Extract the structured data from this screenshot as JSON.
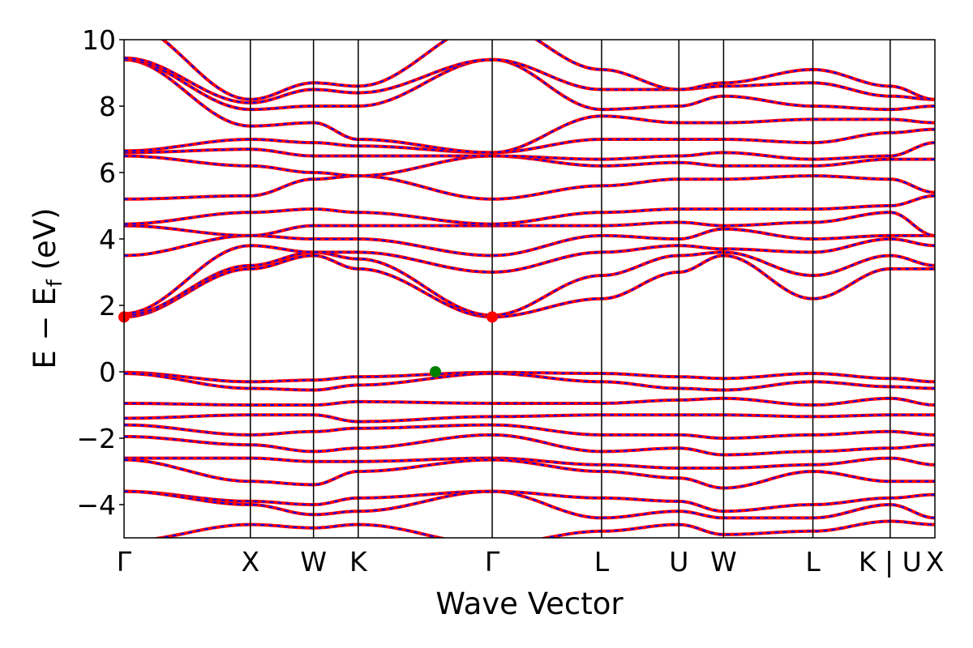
{
  "chart_data": {
    "type": "line",
    "title": "",
    "xlabel": "Wave Vector",
    "ylabel": "E − E",
    "ylabel_sub": "f",
    "ylabel_unit": " (eV)",
    "ylim": [
      -5,
      10
    ],
    "yticks": [
      -4,
      -2,
      0,
      2,
      4,
      6,
      8,
      10
    ],
    "ytick_labels": [
      "−4",
      "−2",
      "0",
      "2",
      "4",
      "6",
      "8",
      "10"
    ],
    "grid": false,
    "line_colors": {
      "band": "#ff0000",
      "overlay_dash": "#0000ff"
    },
    "kpoints": {
      "labels": [
        "Γ",
        "X",
        "W",
        "K",
        "Γ",
        "L",
        "U",
        "W",
        "L",
        "K | U",
        "X"
      ],
      "distance": [
        0,
        1.0,
        1.5,
        1.854,
        2.915,
        3.781,
        4.393,
        4.747,
        5.454,
        6.066,
        6.42
      ]
    },
    "bands": [
      [
        -0.02,
        -0.3,
        -0.25,
        -0.15,
        -0.02,
        -0.05,
        -0.15,
        -0.2,
        -0.05,
        -0.2,
        -0.3
      ],
      [
        -0.05,
        -0.5,
        -0.55,
        -0.4,
        -0.05,
        -0.3,
        -0.5,
        -0.55,
        -0.3,
        -0.45,
        -0.5
      ],
      [
        -0.95,
        -1.0,
        -1.0,
        -0.9,
        -0.95,
        -0.95,
        -0.85,
        -0.8,
        -1.0,
        -0.8,
        -1.0
      ],
      [
        -1.4,
        -1.3,
        -1.3,
        -1.5,
        -1.35,
        -1.3,
        -1.3,
        -1.3,
        -1.35,
        -1.3,
        -1.3
      ],
      [
        -1.6,
        -1.9,
        -1.8,
        -1.7,
        -1.6,
        -1.9,
        -1.9,
        -2.0,
        -1.9,
        -1.8,
        -1.9
      ],
      [
        -1.95,
        -2.2,
        -2.4,
        -2.3,
        -1.9,
        -2.4,
        -2.3,
        -2.5,
        -2.4,
        -2.3,
        -2.2
      ],
      [
        -2.6,
        -2.6,
        -2.7,
        -2.7,
        -2.6,
        -2.8,
        -2.9,
        -2.9,
        -2.8,
        -2.6,
        -2.8
      ],
      [
        -2.65,
        -3.3,
        -3.4,
        -3.0,
        -2.65,
        -3.0,
        -3.2,
        -3.5,
        -3.0,
        -3.3,
        -3.3
      ],
      [
        -3.6,
        -3.9,
        -4.0,
        -3.8,
        -3.6,
        -3.8,
        -3.9,
        -4.2,
        -4.0,
        -3.8,
        -3.7
      ],
      [
        -3.6,
        -4.0,
        -4.3,
        -4.2,
        -3.6,
        -4.4,
        -4.2,
        -4.4,
        -4.4,
        -4.0,
        -4.4
      ],
      [
        -5.1,
        -4.6,
        -4.7,
        -4.6,
        -5.2,
        -4.8,
        -4.6,
        -4.9,
        -4.8,
        -4.5,
        -4.6
      ],
      [
        1.65,
        3.1,
        3.5,
        3.1,
        1.65,
        2.2,
        3.0,
        3.5,
        2.2,
        3.1,
        3.1
      ],
      [
        1.7,
        3.2,
        3.6,
        3.4,
        1.7,
        2.9,
        3.5,
        3.6,
        2.9,
        3.5,
        3.2
      ],
      [
        1.75,
        3.8,
        3.6,
        3.6,
        3.0,
        3.6,
        3.8,
        3.7,
        3.6,
        4.0,
        3.8
      ],
      [
        3.5,
        4.1,
        4.0,
        4.0,
        3.5,
        4.1,
        4.0,
        4.3,
        4.0,
        4.1,
        4.1
      ],
      [
        4.4,
        4.1,
        4.4,
        4.4,
        4.4,
        4.4,
        4.5,
        4.4,
        4.5,
        4.8,
        4.1
      ],
      [
        4.45,
        4.8,
        4.9,
        4.8,
        4.45,
        4.8,
        4.9,
        4.9,
        4.9,
        5.0,
        5.3
      ],
      [
        5.2,
        5.3,
        5.8,
        5.9,
        5.2,
        5.6,
        5.8,
        5.8,
        5.9,
        5.8,
        5.4
      ],
      [
        6.5,
        6.2,
        6.0,
        5.9,
        6.5,
        6.2,
        6.3,
        6.2,
        6.2,
        6.4,
        6.4
      ],
      [
        6.6,
        6.7,
        6.5,
        6.5,
        6.5,
        6.4,
        6.5,
        6.6,
        6.4,
        6.5,
        6.9
      ],
      [
        6.65,
        7.0,
        6.9,
        6.8,
        6.6,
        7.0,
        7.0,
        7.0,
        6.9,
        7.2,
        7.3
      ],
      [
        9.4,
        7.4,
        7.5,
        7.0,
        6.6,
        7.7,
        7.5,
        7.5,
        7.6,
        7.6,
        7.5
      ],
      [
        9.4,
        7.9,
        8.0,
        8.0,
        9.4,
        7.9,
        8.0,
        8.3,
        8.0,
        7.9,
        8.0
      ],
      [
        9.45,
        8.1,
        8.5,
        8.4,
        9.4,
        8.5,
        8.5,
        8.6,
        8.7,
        8.3,
        8.2
      ],
      [
        10.5,
        8.2,
        8.7,
        8.6,
        10.5,
        9.1,
        8.5,
        8.7,
        9.1,
        8.6,
        8.2
      ]
    ],
    "markers": [
      {
        "name": "CBM",
        "k": 0,
        "E": 1.65,
        "color": "#ff0000"
      },
      {
        "name": "CBM",
        "k": 2.915,
        "E": 1.65,
        "color": "#ff0000"
      },
      {
        "name": "VBM",
        "k": 2.465,
        "E": 0.0,
        "color": "#008000"
      }
    ]
  }
}
